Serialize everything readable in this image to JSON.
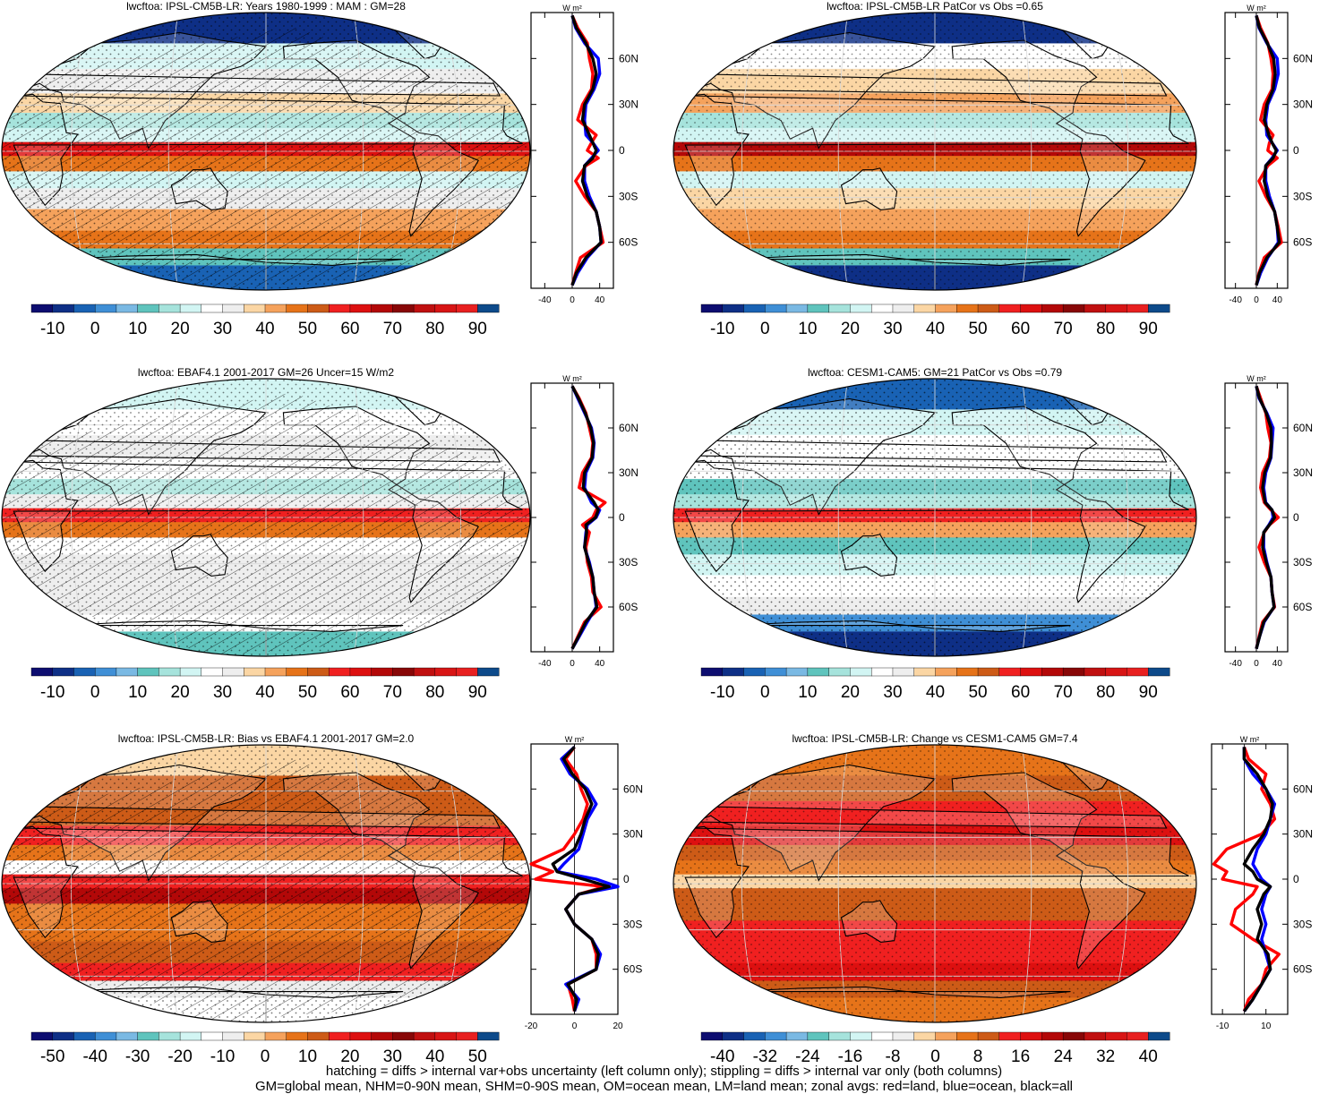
{
  "chart_data": [
    {
      "type": "heatmap",
      "title": "lwcftoa: IPSL-CM5B-LR: Years 1980-1999 : MAM : GM=28",
      "colorbar_ticks": [
        "-10",
        "0",
        "10",
        "20",
        "30",
        "40",
        "50",
        "60",
        "70",
        "80",
        "90"
      ],
      "bands": [
        {
          "lat": 78,
          "v": -8
        },
        {
          "lat": 62,
          "v": 22
        },
        {
          "lat": 45,
          "v": 33
        },
        {
          "lat": 30,
          "v": 38
        },
        {
          "lat": 20,
          "v": 18
        },
        {
          "lat": 10,
          "v": 22
        },
        {
          "lat": 2,
          "v": 62
        },
        {
          "lat": -8,
          "v": 45
        },
        {
          "lat": -18,
          "v": 22
        },
        {
          "lat": -30,
          "v": 32
        },
        {
          "lat": -45,
          "v": 40
        },
        {
          "lat": -58,
          "v": 45
        },
        {
          "lat": -68,
          "v": 12
        },
        {
          "lat": -80,
          "v": -5
        }
      ],
      "zonal_axis": {
        "xticks": [
          "-40",
          "0",
          "40"
        ],
        "xlim": [
          -60,
          60
        ],
        "unit": "W m²",
        "yticks": [
          "60N",
          "30N",
          "0",
          "30S",
          "60S"
        ],
        "ylim": [
          -90,
          90
        ]
      },
      "zonal_profile": {
        "lat": [
          88,
          80,
          70,
          60,
          50,
          40,
          30,
          20,
          10,
          5,
          0,
          -5,
          -10,
          -20,
          -30,
          -40,
          -50,
          -60,
          -70,
          -80,
          -88
        ],
        "land": [
          0,
          8,
          22,
          25,
          30,
          28,
          15,
          8,
          35,
          28,
          22,
          38,
          20,
          5,
          18,
          35,
          40,
          45,
          12,
          5,
          0
        ],
        "ocean": [
          0,
          5,
          18,
          38,
          40,
          32,
          20,
          18,
          20,
          30,
          38,
          28,
          18,
          18,
          25,
          35,
          40,
          42,
          22,
          8,
          0
        ],
        "all": [
          0,
          6,
          20,
          30,
          35,
          30,
          18,
          15,
          25,
          30,
          35,
          30,
          18,
          15,
          22,
          35,
          40,
          42,
          20,
          6,
          0
        ]
      }
    },
    {
      "type": "heatmap",
      "title": "lwcftoa: IPSL-CM5B-LR PatCor vs Obs =0.65",
      "colorbar_ticks": [
        "-10",
        "0",
        "10",
        "20",
        "30",
        "40",
        "50",
        "60",
        "70",
        "80",
        "90"
      ],
      "bands": [
        {
          "lat": 78,
          "v": -6
        },
        {
          "lat": 62,
          "v": 25
        },
        {
          "lat": 45,
          "v": 38
        },
        {
          "lat": 30,
          "v": 42
        },
        {
          "lat": 20,
          "v": 15
        },
        {
          "lat": 10,
          "v": 20
        },
        {
          "lat": 2,
          "v": 65
        },
        {
          "lat": -8,
          "v": 48
        },
        {
          "lat": -18,
          "v": 20
        },
        {
          "lat": -30,
          "v": 35
        },
        {
          "lat": -45,
          "v": 40
        },
        {
          "lat": -58,
          "v": 45
        },
        {
          "lat": -68,
          "v": 10
        },
        {
          "lat": -80,
          "v": -6
        }
      ],
      "zonal_axis": {
        "xticks": [
          "-40",
          "0",
          "40"
        ],
        "xlim": [
          -60,
          60
        ],
        "unit": "W m²",
        "yticks": [
          "60N",
          "30N",
          "0",
          "30S",
          "60S"
        ],
        "ylim": [
          -90,
          90
        ]
      },
      "zonal_profile": {
        "lat": [
          88,
          80,
          70,
          60,
          50,
          40,
          30,
          20,
          10,
          5,
          0,
          -5,
          -10,
          -20,
          -30,
          -40,
          -50,
          -60,
          -70,
          -80,
          -88
        ],
        "land": [
          0,
          8,
          22,
          28,
          32,
          30,
          15,
          8,
          32,
          25,
          22,
          40,
          22,
          5,
          18,
          35,
          42,
          48,
          15,
          5,
          0
        ],
        "ocean": [
          0,
          5,
          20,
          40,
          42,
          35,
          22,
          18,
          20,
          30,
          40,
          30,
          18,
          18,
          25,
          35,
          40,
          42,
          22,
          8,
          0
        ],
        "all": [
          0,
          6,
          21,
          33,
          36,
          32,
          20,
          15,
          24,
          30,
          38,
          32,
          18,
          15,
          22,
          35,
          40,
          44,
          20,
          6,
          0
        ]
      }
    },
    {
      "type": "heatmap",
      "title": "lwcftoa: EBAF4.1 2001-2017 GM=26 Uncer=15 W/m2",
      "colorbar_ticks": [
        "-10",
        "0",
        "10",
        "20",
        "30",
        "40",
        "50",
        "60",
        "70",
        "80",
        "90"
      ],
      "bands": [
        {
          "lat": 78,
          "v": 20
        },
        {
          "lat": 62,
          "v": 25
        },
        {
          "lat": 45,
          "v": 32
        },
        {
          "lat": 30,
          "v": 28
        },
        {
          "lat": 20,
          "v": 16
        },
        {
          "lat": 10,
          "v": 30
        },
        {
          "lat": 2,
          "v": 55
        },
        {
          "lat": -8,
          "v": 48
        },
        {
          "lat": -18,
          "v": 25
        },
        {
          "lat": -30,
          "v": 30
        },
        {
          "lat": -45,
          "v": 30
        },
        {
          "lat": -58,
          "v": 32
        },
        {
          "lat": -68,
          "v": 25
        },
        {
          "lat": -80,
          "v": 12
        }
      ],
      "zonal_axis": {
        "xticks": [
          "-40",
          "0",
          "40"
        ],
        "xlim": [
          -60,
          60
        ],
        "unit": "W m²",
        "yticks": [
          "60N",
          "30N",
          "0",
          "30S",
          "60S"
        ],
        "ylim": [
          -90,
          90
        ]
      },
      "zonal_profile": {
        "lat": [
          88,
          80,
          70,
          60,
          50,
          40,
          30,
          20,
          10,
          5,
          0,
          -5,
          -10,
          -20,
          -30,
          -40,
          -50,
          -60,
          -70,
          -80,
          -88
        ],
        "land": [
          0,
          10,
          20,
          25,
          30,
          28,
          15,
          10,
          48,
          35,
          30,
          15,
          25,
          20,
          22,
          28,
          30,
          42,
          18,
          8,
          0
        ],
        "ocean": [
          0,
          8,
          18,
          28,
          32,
          30,
          20,
          18,
          28,
          40,
          35,
          22,
          20,
          18,
          25,
          30,
          32,
          35,
          22,
          10,
          0
        ],
        "all": [
          0,
          9,
          19,
          27,
          31,
          29,
          18,
          16,
          32,
          38,
          34,
          20,
          21,
          18,
          24,
          30,
          32,
          36,
          20,
          9,
          0
        ]
      }
    },
    {
      "type": "heatmap",
      "title": "lwcftoa: CESM1-CAM5: GM=21 PatCor vs Obs =0.79",
      "colorbar_ticks": [
        "-10",
        "0",
        "10",
        "20",
        "30",
        "40",
        "50",
        "60",
        "70",
        "80",
        "90"
      ],
      "bands": [
        {
          "lat": 78,
          "v": -4
        },
        {
          "lat": 62,
          "v": 20
        },
        {
          "lat": 45,
          "v": 28
        },
        {
          "lat": 30,
          "v": 25
        },
        {
          "lat": 20,
          "v": 10
        },
        {
          "lat": 10,
          "v": 15
        },
        {
          "lat": 2,
          "v": 60
        },
        {
          "lat": -8,
          "v": 40
        },
        {
          "lat": -18,
          "v": 12
        },
        {
          "lat": -30,
          "v": 22
        },
        {
          "lat": -45,
          "v": 28
        },
        {
          "lat": -58,
          "v": 32
        },
        {
          "lat": -68,
          "v": 2
        },
        {
          "lat": -80,
          "v": -6
        }
      ],
      "zonal_axis": {
        "xticks": [
          "-40",
          "0",
          "40"
        ],
        "xlim": [
          -60,
          60
        ],
        "unit": "W m²",
        "yticks": [
          "60N",
          "30N",
          "0",
          "30S",
          "60S"
        ],
        "ylim": [
          -90,
          90
        ]
      },
      "zonal_profile": {
        "lat": [
          88,
          80,
          70,
          60,
          50,
          40,
          30,
          20,
          10,
          5,
          0,
          -5,
          -10,
          -20,
          -30,
          -40,
          -50,
          -60,
          -70,
          -80,
          -88
        ],
        "land": [
          0,
          8,
          18,
          22,
          28,
          25,
          12,
          8,
          15,
          28,
          42,
          25,
          15,
          5,
          15,
          28,
          30,
          35,
          12,
          5,
          0
        ],
        "ocean": [
          0,
          5,
          20,
          32,
          30,
          28,
          18,
          14,
          18,
          30,
          32,
          24,
          14,
          14,
          20,
          28,
          30,
          34,
          15,
          6,
          0
        ],
        "all": [
          0,
          6,
          19,
          28,
          29,
          27,
          16,
          12,
          17,
          30,
          35,
          25,
          14,
          12,
          19,
          28,
          30,
          34,
          14,
          6,
          0
        ]
      }
    },
    {
      "type": "heatmap",
      "title": "lwcftoa: IPSL-CM5B-LR: Bias vs EBAF4.1 2001-2017 GM=2.0",
      "colorbar_ticks": [
        "-50",
        "-40",
        "-30",
        "-20",
        "-10",
        "0",
        "10",
        "20",
        "30",
        "40",
        "50"
      ],
      "bands": [
        {
          "lat": 78,
          "v": -5
        },
        {
          "lat": 62,
          "v": 12
        },
        {
          "lat": 45,
          "v": 14
        },
        {
          "lat": 30,
          "v": 18
        },
        {
          "lat": 20,
          "v": 8
        },
        {
          "lat": 10,
          "v": -15
        },
        {
          "lat": 2,
          "v": 18
        },
        {
          "lat": -8,
          "v": 25
        },
        {
          "lat": -18,
          "v": 8
        },
        {
          "lat": -30,
          "v": 6
        },
        {
          "lat": -45,
          "v": 12
        },
        {
          "lat": -58,
          "v": 16
        },
        {
          "lat": -68,
          "v": -8
        },
        {
          "lat": -80,
          "v": -12
        }
      ],
      "zonal_axis": {
        "xticks": [
          "-20",
          "0",
          "20"
        ],
        "xlim": [
          -20,
          20
        ],
        "unit": "W m²",
        "yticks": [
          "60N",
          "30N",
          "0",
          "30S",
          "60S"
        ],
        "ylim": [
          -90,
          90
        ]
      },
      "zonal_profile": {
        "lat": [
          88,
          80,
          70,
          60,
          50,
          40,
          30,
          20,
          10,
          5,
          0,
          -5,
          -10,
          -20,
          -30,
          -40,
          -50,
          -60,
          -70,
          -80,
          -88
        ],
        "land": [
          0,
          -4,
          1,
          3,
          6,
          4,
          0,
          -5,
          -20,
          -10,
          -18,
          14,
          2,
          -4,
          0,
          8,
          10,
          10,
          -3,
          -1,
          0
        ],
        "ocean": [
          0,
          -6,
          -2,
          6,
          10,
          6,
          4,
          2,
          -5,
          -8,
          10,
          20,
          2,
          -4,
          0,
          8,
          12,
          10,
          -4,
          2,
          0
        ],
        "all": [
          0,
          -5,
          -1,
          5,
          8,
          5,
          3,
          0,
          -10,
          -8,
          4,
          16,
          2,
          -4,
          0,
          8,
          11,
          10,
          -3,
          1,
          0
        ]
      }
    },
    {
      "type": "heatmap",
      "title": "lwcftoa: IPSL-CM5B-LR: Change vs CESM1-CAM5 GM=7.4",
      "colorbar_ticks": [
        "-40",
        "-32",
        "-24",
        "-16",
        "-8",
        "0",
        "8",
        "16",
        "24",
        "32",
        "40"
      ],
      "bands": [
        {
          "lat": 78,
          "v": 4
        },
        {
          "lat": 62,
          "v": 10
        },
        {
          "lat": 45,
          "v": 14
        },
        {
          "lat": 30,
          "v": 18
        },
        {
          "lat": 20,
          "v": 8
        },
        {
          "lat": 10,
          "v": 6
        },
        {
          "lat": 2,
          "v": -4
        },
        {
          "lat": -8,
          "v": 10
        },
        {
          "lat": -18,
          "v": 9
        },
        {
          "lat": -30,
          "v": 12
        },
        {
          "lat": -45,
          "v": 16
        },
        {
          "lat": -58,
          "v": 18
        },
        {
          "lat": -68,
          "v": 10
        },
        {
          "lat": -80,
          "v": 6
        }
      ],
      "zonal_axis": {
        "xticks": [
          "-10",
          "10"
        ],
        "xlim": [
          -15,
          20
        ],
        "unit": "W m²",
        "yticks": [
          "60N",
          "30N",
          "0",
          "30S",
          "60S"
        ],
        "ylim": [
          -90,
          90
        ]
      },
      "zonal_profile": {
        "lat": [
          88,
          80,
          70,
          60,
          50,
          40,
          30,
          20,
          10,
          5,
          0,
          -5,
          -10,
          -20,
          -30,
          -40,
          -50,
          -60,
          -70,
          -80,
          -88
        ],
        "land": [
          0,
          2,
          10,
          8,
          12,
          14,
          8,
          -8,
          -14,
          -8,
          -10,
          6,
          4,
          -4,
          -6,
          4,
          16,
          10,
          8,
          2,
          0
        ],
        "ocean": [
          0,
          0,
          4,
          10,
          14,
          12,
          10,
          6,
          4,
          6,
          8,
          12,
          10,
          8,
          10,
          8,
          10,
          12,
          8,
          4,
          0
        ],
        "all": [
          0,
          0,
          6,
          10,
          13,
          12,
          9,
          4,
          0,
          4,
          6,
          12,
          9,
          6,
          8,
          6,
          11,
          12,
          8,
          4,
          0
        ]
      }
    }
  ],
  "colors": {
    "colorbar_palette": [
      "#0d0d70",
      "#0e2f86",
      "#1962b4",
      "#3f8fd6",
      "#7ab9e3",
      "#5fc4bd",
      "#a6e3dc",
      "#d2f5f3",
      "#ffffff",
      "#eeeeee",
      "#fbd6a4",
      "#f5a25c",
      "#e67319",
      "#cd5b17",
      "#f02020",
      "#dd1010",
      "#b30808",
      "#880707",
      "#c01010",
      "#d81515",
      "#e82020",
      "#0d4a8a"
    ],
    "profile_land": "#ff0000",
    "profile_ocean": "#0000ff",
    "profile_all": "#000000"
  },
  "footnote": {
    "line1": "hatching = diffs > internal var+obs uncertainty (left column only); stippling = diffs > internal var only (both columns)",
    "line2": "GM=global mean, NHM=0-90N mean, SHM=0-90S mean, OM=ocean mean, LM=land mean; zonal avgs: red=land, blue=ocean, black=all"
  }
}
